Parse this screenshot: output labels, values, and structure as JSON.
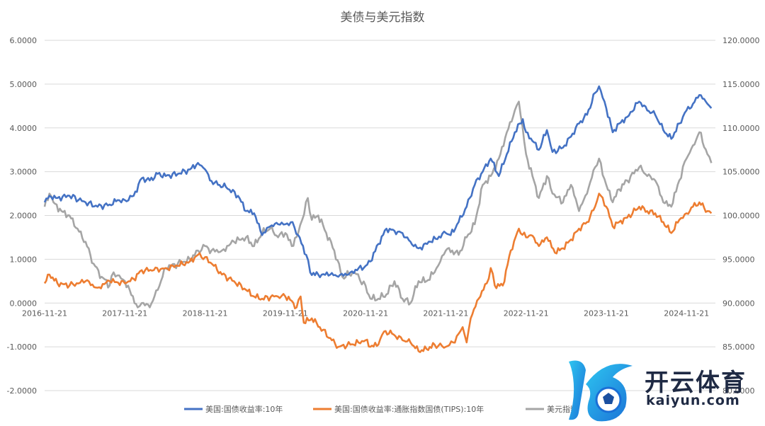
{
  "chart_data": {
    "type": "line",
    "title": "美债与美元指数",
    "x_categories": [
      "2016-11-21",
      "2017-11-21",
      "2018-11-21",
      "2019-11-21",
      "2020-11-21",
      "2021-11-21",
      "2022-11-21",
      "2023-11-21",
      "2024-11-21"
    ],
    "y_left": {
      "ylim": [
        -2,
        6
      ],
      "ticks": [
        "6.0000",
        "5.0000",
        "4.0000",
        "3.0000",
        "2.0000",
        "1.0000",
        "0.0000",
        "-1.0000",
        "-2.0000"
      ]
    },
    "y_right": {
      "ylim": [
        80,
        120
      ],
      "ticks": [
        "120.0000",
        "115.0000",
        "110.0000",
        "105.0000",
        "100.0000",
        "95.0000",
        "90.0000",
        "85.0000",
        "80.0000"
      ]
    },
    "grid": true,
    "legend_position": "bottom",
    "series": [
      {
        "name": "美国:国债收益率:10年",
        "axis": "left",
        "color": "#4472c4",
        "points": [
          [
            2016.89,
            2.3
          ],
          [
            2016.95,
            2.45
          ],
          [
            2017.05,
            2.4
          ],
          [
            2017.2,
            2.45
          ],
          [
            2017.4,
            2.3
          ],
          [
            2017.55,
            2.2
          ],
          [
            2017.7,
            2.25
          ],
          [
            2017.8,
            2.35
          ],
          [
            2017.89,
            2.35
          ],
          [
            2018.0,
            2.45
          ],
          [
            2018.1,
            2.85
          ],
          [
            2018.2,
            2.8
          ],
          [
            2018.3,
            2.95
          ],
          [
            2018.4,
            2.9
          ],
          [
            2018.55,
            2.95
          ],
          [
            2018.7,
            3.05
          ],
          [
            2018.8,
            3.2
          ],
          [
            2018.89,
            3.05
          ],
          [
            2018.95,
            2.8
          ],
          [
            2019.05,
            2.7
          ],
          [
            2019.15,
            2.65
          ],
          [
            2019.3,
            2.45
          ],
          [
            2019.4,
            2.1
          ],
          [
            2019.5,
            2.05
          ],
          [
            2019.6,
            1.55
          ],
          [
            2019.7,
            1.75
          ],
          [
            2019.8,
            1.8
          ],
          [
            2019.89,
            1.8
          ],
          [
            2019.98,
            1.85
          ],
          [
            2020.05,
            1.55
          ],
          [
            2020.15,
            1.1
          ],
          [
            2020.2,
            0.7
          ],
          [
            2020.3,
            0.65
          ],
          [
            2020.45,
            0.65
          ],
          [
            2020.55,
            0.6
          ],
          [
            2020.7,
            0.7
          ],
          [
            2020.89,
            0.85
          ],
          [
            2020.95,
            0.95
          ],
          [
            2021.05,
            1.35
          ],
          [
            2021.15,
            1.7
          ],
          [
            2021.25,
            1.65
          ],
          [
            2021.35,
            1.6
          ],
          [
            2021.45,
            1.4
          ],
          [
            2021.55,
            1.25
          ],
          [
            2021.7,
            1.4
          ],
          [
            2021.89,
            1.6
          ],
          [
            2021.95,
            1.55
          ],
          [
            2022.05,
            1.85
          ],
          [
            2022.15,
            2.2
          ],
          [
            2022.25,
            2.7
          ],
          [
            2022.35,
            3.0
          ],
          [
            2022.45,
            3.3
          ],
          [
            2022.55,
            2.9
          ],
          [
            2022.65,
            3.4
          ],
          [
            2022.75,
            3.9
          ],
          [
            2022.85,
            4.2
          ],
          [
            2022.89,
            3.9
          ],
          [
            2022.97,
            3.7
          ],
          [
            2023.05,
            3.5
          ],
          [
            2023.15,
            3.95
          ],
          [
            2023.22,
            3.45
          ],
          [
            2023.35,
            3.55
          ],
          [
            2023.45,
            3.8
          ],
          [
            2023.55,
            4.1
          ],
          [
            2023.65,
            4.3
          ],
          [
            2023.75,
            4.8
          ],
          [
            2023.8,
            4.95
          ],
          [
            2023.89,
            4.45
          ],
          [
            2023.97,
            3.9
          ],
          [
            2024.05,
            4.1
          ],
          [
            2024.15,
            4.25
          ],
          [
            2024.3,
            4.6
          ],
          [
            2024.4,
            4.4
          ],
          [
            2024.5,
            4.3
          ],
          [
            2024.6,
            3.95
          ],
          [
            2024.7,
            3.75
          ],
          [
            2024.8,
            4.1
          ],
          [
            2024.89,
            4.4
          ],
          [
            2024.97,
            4.55
          ],
          [
            2025.05,
            4.75
          ],
          [
            2025.15,
            4.55
          ],
          [
            2025.2,
            4.45
          ]
        ]
      },
      {
        "name": "美国:国债收益率:通胀指数国债(TIPS):10年",
        "axis": "left",
        "color": "#ed7d31",
        "points": [
          [
            2016.89,
            0.45
          ],
          [
            2016.95,
            0.65
          ],
          [
            2017.05,
            0.45
          ],
          [
            2017.2,
            0.4
          ],
          [
            2017.4,
            0.5
          ],
          [
            2017.55,
            0.35
          ],
          [
            2017.7,
            0.5
          ],
          [
            2017.89,
            0.45
          ],
          [
            2018.0,
            0.55
          ],
          [
            2018.1,
            0.75
          ],
          [
            2018.25,
            0.75
          ],
          [
            2018.4,
            0.8
          ],
          [
            2018.55,
            0.85
          ],
          [
            2018.7,
            0.95
          ],
          [
            2018.8,
            1.1
          ],
          [
            2018.89,
            1.05
          ],
          [
            2019.0,
            0.85
          ],
          [
            2019.1,
            0.65
          ],
          [
            2019.25,
            0.5
          ],
          [
            2019.4,
            0.3
          ],
          [
            2019.5,
            0.15
          ],
          [
            2019.6,
            0.1
          ],
          [
            2019.75,
            0.15
          ],
          [
            2019.89,
            0.15
          ],
          [
            2019.97,
            0.05
          ],
          [
            2020.03,
            -0.1
          ],
          [
            2020.08,
            0.15
          ],
          [
            2020.12,
            -0.45
          ],
          [
            2020.22,
            -0.35
          ],
          [
            2020.32,
            -0.55
          ],
          [
            2020.45,
            -0.8
          ],
          [
            2020.55,
            -1.0
          ],
          [
            2020.7,
            -0.95
          ],
          [
            2020.8,
            -0.9
          ],
          [
            2020.89,
            -0.85
          ],
          [
            2020.95,
            -1.0
          ],
          [
            2021.05,
            -0.95
          ],
          [
            2021.12,
            -0.65
          ],
          [
            2021.22,
            -0.7
          ],
          [
            2021.35,
            -0.85
          ],
          [
            2021.45,
            -0.9
          ],
          [
            2021.55,
            -1.1
          ],
          [
            2021.65,
            -1.05
          ],
          [
            2021.75,
            -0.95
          ],
          [
            2021.89,
            -1.0
          ],
          [
            2021.98,
            -0.9
          ],
          [
            2022.05,
            -0.7
          ],
          [
            2022.1,
            -0.55
          ],
          [
            2022.15,
            -0.9
          ],
          [
            2022.2,
            -0.35
          ],
          [
            2022.3,
            0.1
          ],
          [
            2022.4,
            0.45
          ],
          [
            2022.45,
            0.8
          ],
          [
            2022.5,
            0.4
          ],
          [
            2022.6,
            0.4
          ],
          [
            2022.7,
            1.2
          ],
          [
            2022.8,
            1.7
          ],
          [
            2022.89,
            1.5
          ],
          [
            2022.95,
            1.55
          ],
          [
            2023.05,
            1.3
          ],
          [
            2023.15,
            1.5
          ],
          [
            2023.25,
            1.15
          ],
          [
            2023.35,
            1.25
          ],
          [
            2023.45,
            1.45
          ],
          [
            2023.55,
            1.7
          ],
          [
            2023.65,
            1.85
          ],
          [
            2023.75,
            2.2
          ],
          [
            2023.8,
            2.5
          ],
          [
            2023.89,
            2.2
          ],
          [
            2023.97,
            1.75
          ],
          [
            2024.05,
            1.85
          ],
          [
            2024.15,
            1.95
          ],
          [
            2024.3,
            2.2
          ],
          [
            2024.4,
            2.1
          ],
          [
            2024.5,
            2.05
          ],
          [
            2024.6,
            1.85
          ],
          [
            2024.7,
            1.6
          ],
          [
            2024.8,
            1.9
          ],
          [
            2024.89,
            2.05
          ],
          [
            2024.97,
            2.2
          ],
          [
            2025.05,
            2.3
          ],
          [
            2025.15,
            2.1
          ],
          [
            2025.2,
            2.05
          ]
        ]
      },
      {
        "name": "美元指数",
        "axis": "right",
        "color": "#a5a5a5",
        "points": [
          [
            2016.89,
            101.0
          ],
          [
            2016.95,
            102.5
          ],
          [
            2017.0,
            101.5
          ],
          [
            2017.1,
            100.5
          ],
          [
            2017.2,
            100.0
          ],
          [
            2017.3,
            98.5
          ],
          [
            2017.4,
            97.0
          ],
          [
            2017.5,
            94.5
          ],
          [
            2017.6,
            93.0
          ],
          [
            2017.7,
            92.0
          ],
          [
            2017.75,
            93.5
          ],
          [
            2017.89,
            92.5
          ],
          [
            2017.95,
            91.5
          ],
          [
            2018.05,
            89.5
          ],
          [
            2018.1,
            90.0
          ],
          [
            2018.2,
            89.5
          ],
          [
            2018.3,
            91.5
          ],
          [
            2018.4,
            94.0
          ],
          [
            2018.55,
            94.5
          ],
          [
            2018.7,
            95.0
          ],
          [
            2018.8,
            96.0
          ],
          [
            2018.89,
            96.5
          ],
          [
            2018.97,
            96.0
          ],
          [
            2019.1,
            96.0
          ],
          [
            2019.25,
            97.0
          ],
          [
            2019.4,
            97.5
          ],
          [
            2019.5,
            96.5
          ],
          [
            2019.6,
            98.0
          ],
          [
            2019.7,
            98.5
          ],
          [
            2019.8,
            97.5
          ],
          [
            2019.89,
            98.0
          ],
          [
            2019.97,
            96.5
          ],
          [
            2020.05,
            98.0
          ],
          [
            2020.1,
            99.5
          ],
          [
            2020.17,
            102.0
          ],
          [
            2020.22,
            99.5
          ],
          [
            2020.3,
            100.0
          ],
          [
            2020.4,
            98.0
          ],
          [
            2020.5,
            96.0
          ],
          [
            2020.6,
            93.0
          ],
          [
            2020.75,
            93.5
          ],
          [
            2020.89,
            92.0
          ],
          [
            2020.95,
            90.5
          ],
          [
            2021.05,
            90.5
          ],
          [
            2021.15,
            91.0
          ],
          [
            2021.25,
            92.5
          ],
          [
            2021.35,
            90.5
          ],
          [
            2021.45,
            90.0
          ],
          [
            2021.55,
            92.5
          ],
          [
            2021.65,
            92.5
          ],
          [
            2021.75,
            93.5
          ],
          [
            2021.89,
            96.0
          ],
          [
            2021.97,
            96.0
          ],
          [
            2022.05,
            95.5
          ],
          [
            2022.15,
            97.5
          ],
          [
            2022.25,
            99.0
          ],
          [
            2022.35,
            103.5
          ],
          [
            2022.45,
            104.5
          ],
          [
            2022.55,
            106.5
          ],
          [
            2022.65,
            109.5
          ],
          [
            2022.75,
            112.0
          ],
          [
            2022.8,
            113.0
          ],
          [
            2022.89,
            107.0
          ],
          [
            2022.97,
            104.5
          ],
          [
            2023.05,
            102.0
          ],
          [
            2023.15,
            104.5
          ],
          [
            2023.22,
            102.5
          ],
          [
            2023.35,
            101.5
          ],
          [
            2023.45,
            103.5
          ],
          [
            2023.55,
            100.5
          ],
          [
            2023.65,
            102.5
          ],
          [
            2023.75,
            105.5
          ],
          [
            2023.8,
            106.5
          ],
          [
            2023.89,
            103.5
          ],
          [
            2023.97,
            101.5
          ],
          [
            2024.05,
            103.0
          ],
          [
            2024.15,
            104.0
          ],
          [
            2024.3,
            105.5
          ],
          [
            2024.4,
            104.5
          ],
          [
            2024.5,
            104.0
          ],
          [
            2024.6,
            101.5
          ],
          [
            2024.7,
            101.0
          ],
          [
            2024.8,
            104.0
          ],
          [
            2024.89,
            106.5
          ],
          [
            2024.97,
            108.0
          ],
          [
            2025.05,
            109.5
          ],
          [
            2025.15,
            107.0
          ],
          [
            2025.2,
            106.0
          ]
        ]
      }
    ]
  },
  "watermark": {
    "brand_cn": "开云体育",
    "brand_en": "kaiyun.com"
  }
}
